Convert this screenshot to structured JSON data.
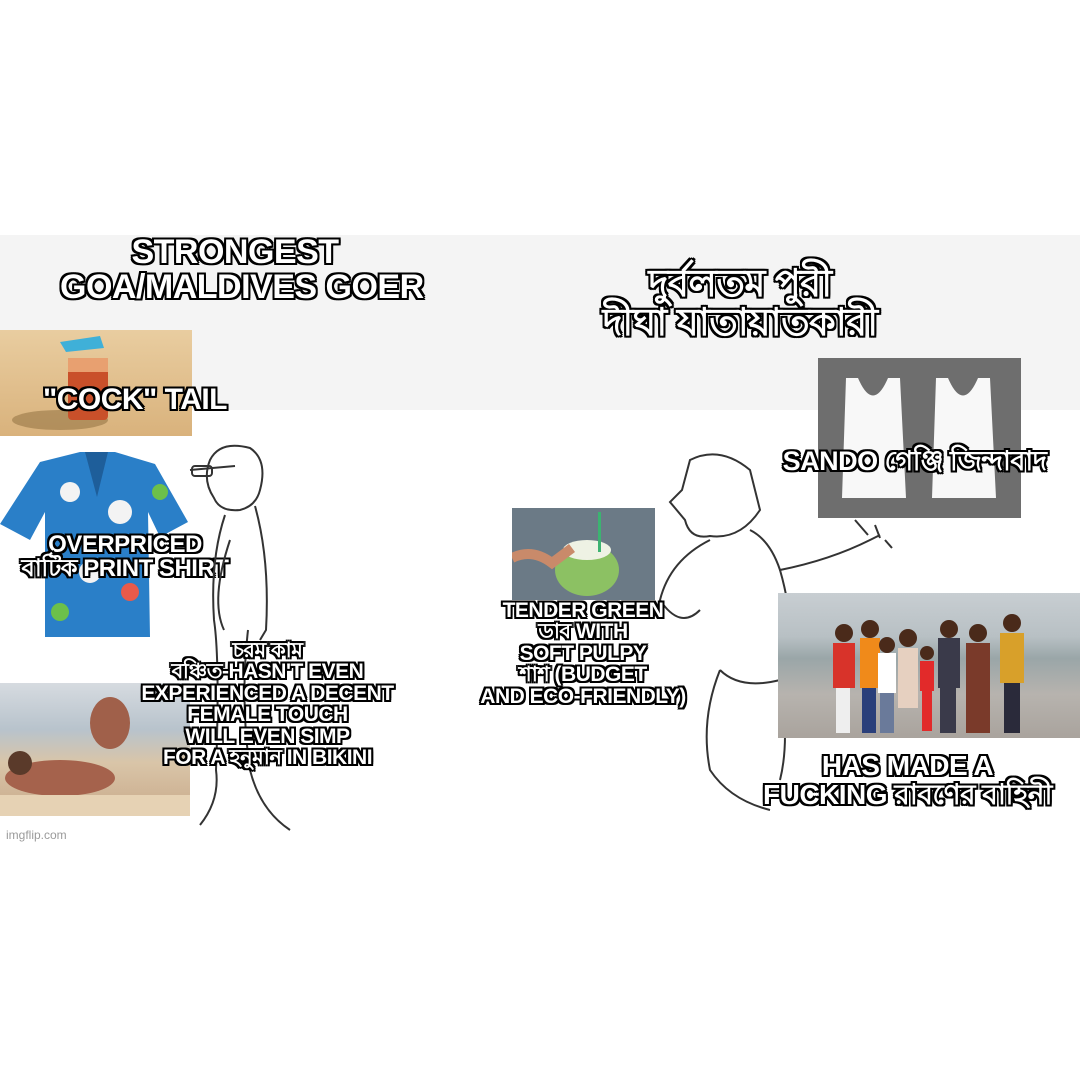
{
  "left": {
    "title": [
      "STRONGEST",
      "GOA/MALDIVES GOER"
    ],
    "cocktail_caption": "\"COCK\" TAIL",
    "shirt_caption": [
      "OVERPRICED",
      "বাটিক  PRINT SHIRT"
    ],
    "figure_caption": [
      "চরম কাম",
      "বঞ্চিত-HASN'T EVEN",
      "EXPERIENCED A DECENT",
      "FEMALE TOUCH",
      "WILL EVEN SIMP",
      "FOR A হনুমান IN BIKINI"
    ]
  },
  "right": {
    "title": [
      "দুর্বলতম পুরী",
      "দীঘা যাতায়াতকারী"
    ],
    "vest_caption": "SANDO গেঞ্জি জিন্দাবাদ",
    "coconut_caption": [
      "TENDER GREEN",
      "ডাব WITH",
      "SOFT PULPY",
      "শাশ (BUDGET",
      "AND ECO-FRIENDLY)"
    ],
    "family_caption": [
      "HAS MADE A",
      "FUCKING রাবণের বাহিনী"
    ]
  },
  "watermark": "imgflip.com",
  "colors": {
    "background": "#ffffff",
    "band": "#f4f4f4",
    "caption_fill": "#ffffff",
    "caption_outline": "#000000"
  }
}
